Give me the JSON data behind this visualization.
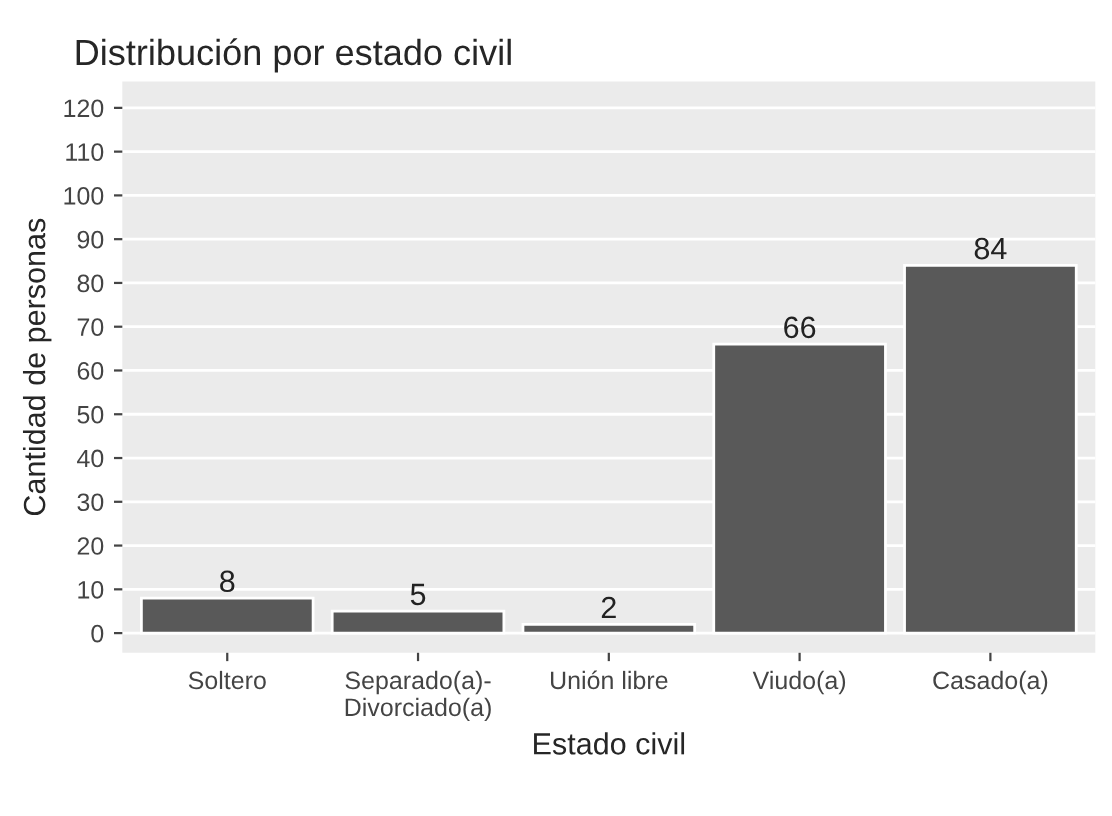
{
  "chart_data": {
    "type": "bar",
    "title": "Distribución por estado civil",
    "xlabel": "Estado civil",
    "ylabel": "Cantidad de personas",
    "categories": [
      "Soltero",
      "Separado(a)-\nDivorciado(a)",
      "Unión libre",
      "Viudo(a)",
      "Casado(a)"
    ],
    "values": [
      8,
      5,
      2,
      66,
      84
    ],
    "color": "#595959",
    "ylim": [
      -4.5,
      126
    ],
    "yticks": [
      0,
      10,
      20,
      30,
      40,
      50,
      60,
      70,
      80,
      90,
      100,
      110,
      120
    ],
    "grid": "y",
    "data_labels": true
  }
}
